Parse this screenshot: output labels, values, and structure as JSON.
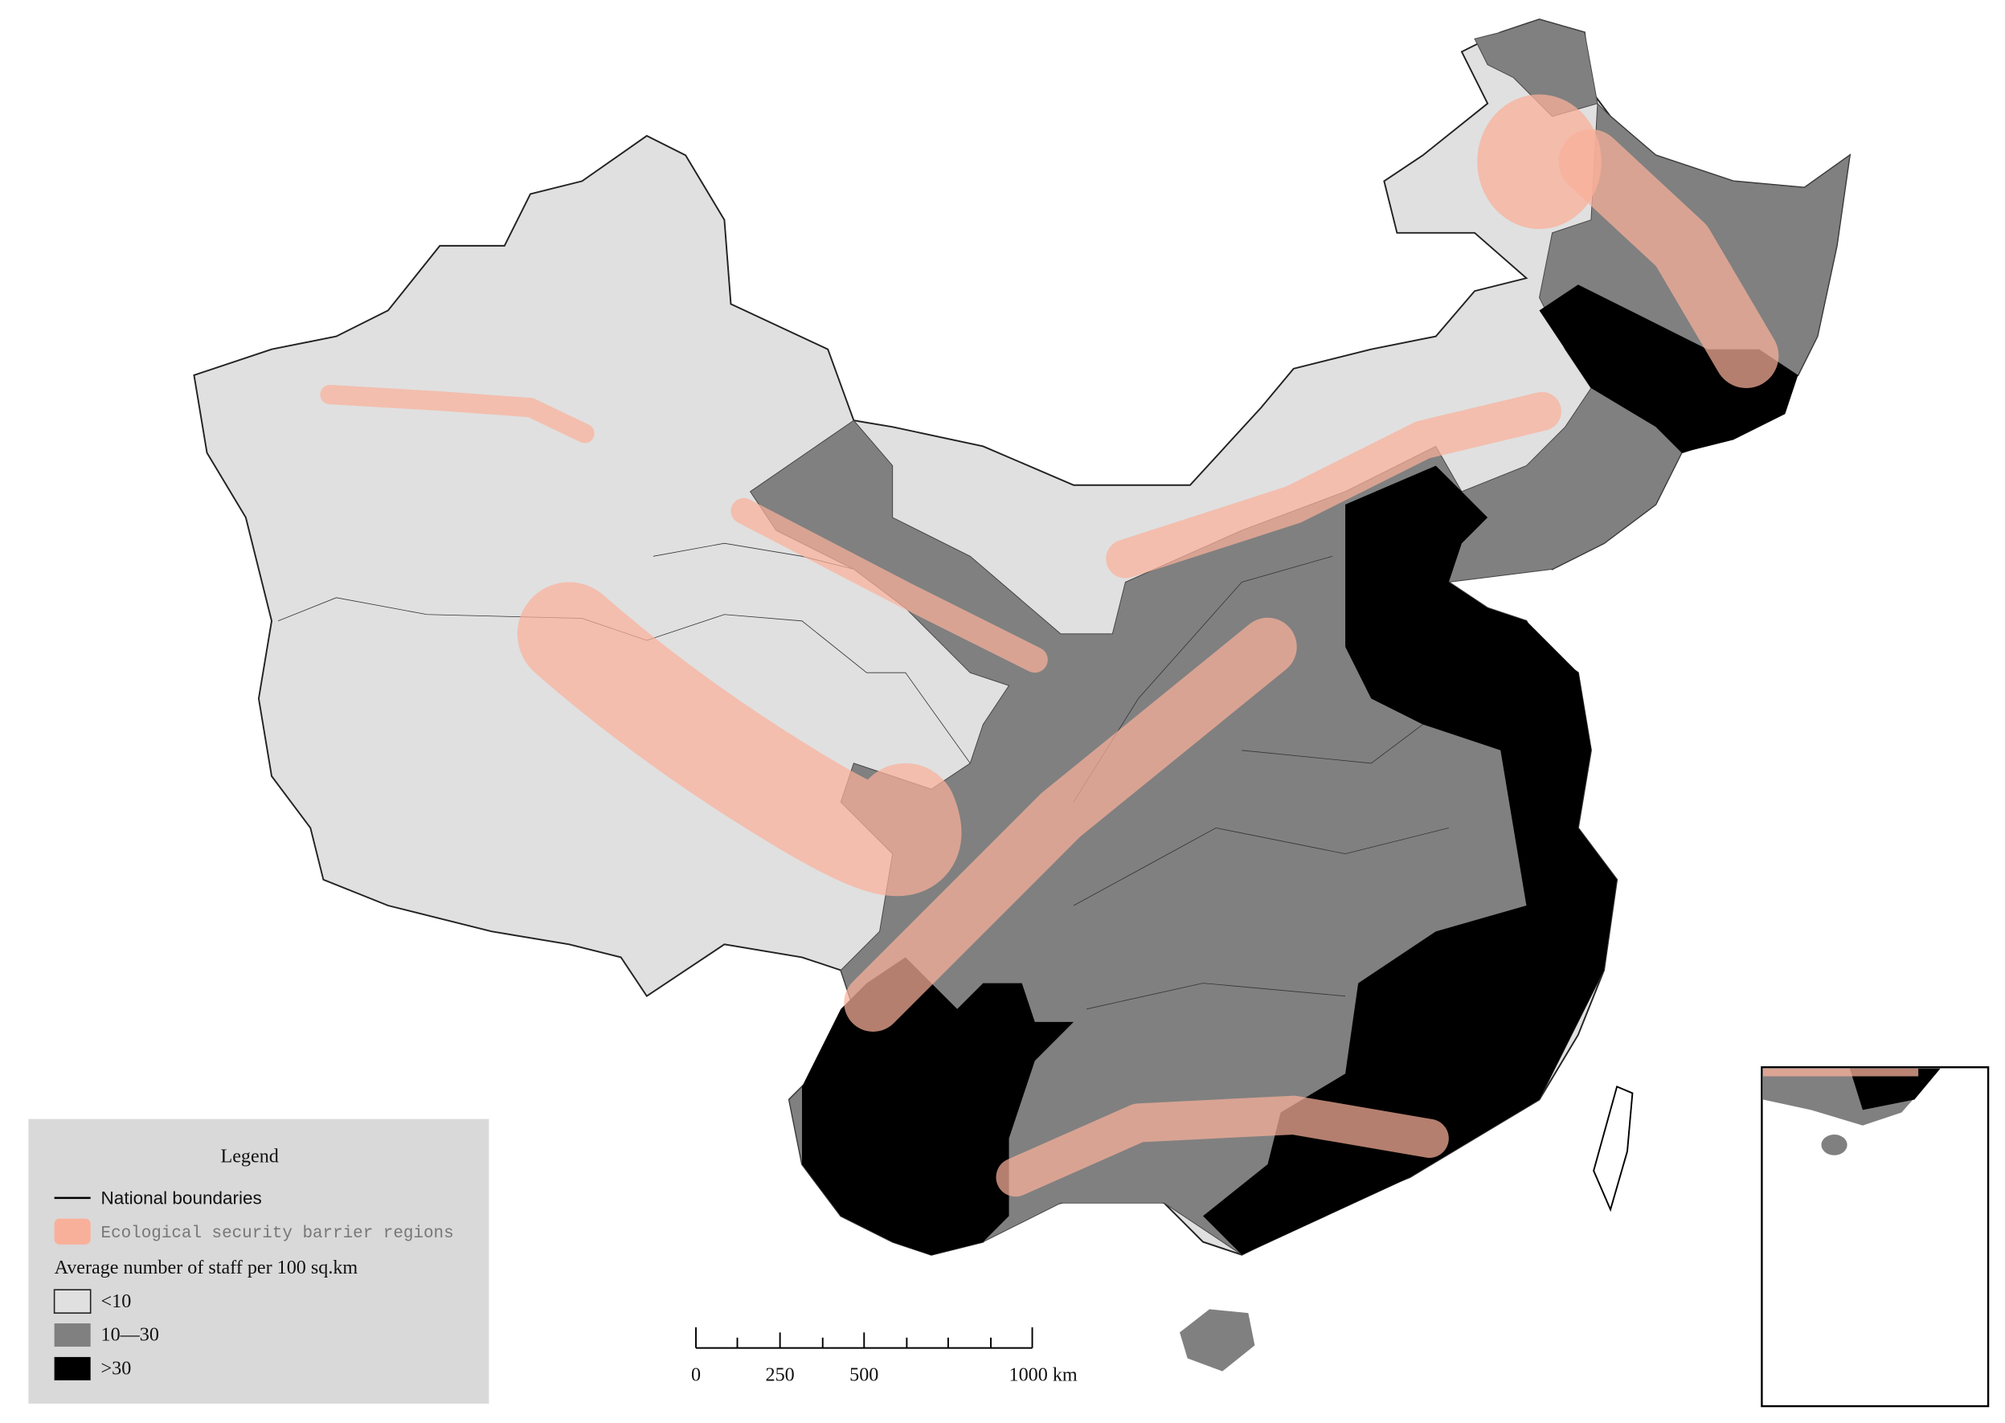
{
  "legend": {
    "title": "Legend",
    "items": [
      {
        "label": "National boundaries"
      },
      {
        "label": "Ecological security barrier regions"
      }
    ],
    "subtitle": "Average number of staff per 100 sq.km",
    "classes": [
      {
        "label": "<10"
      },
      {
        "label": "10—30"
      },
      {
        "label": ">30"
      }
    ]
  },
  "scale_bar": {
    "labels": [
      "0",
      "250",
      "500",
      "1000 km"
    ]
  }
}
